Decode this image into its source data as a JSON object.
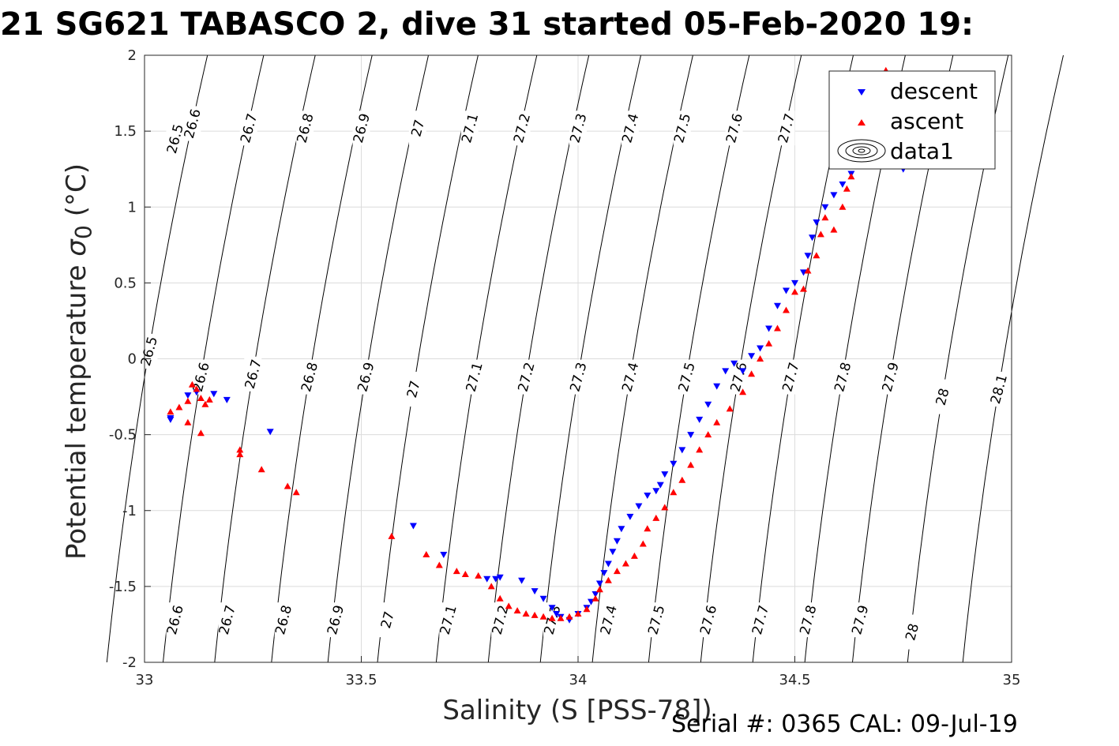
{
  "title": "21 SG621 TABASCO 2, dive 31 started 05-Feb-2020 19:",
  "footer": "Serial #: 0365  CAL: 09-Jul-19",
  "colors": {
    "descent": "#0000ff",
    "ascent": "#ff0000",
    "grid": "#dcdcdc",
    "contour": "#000000"
  },
  "chart_data": {
    "type": "scatter",
    "title": "21 SG621 TABASCO 2, dive 31 started 05-Feb-2020 19:",
    "xlabel": "Salinity (S [PSS-78])",
    "ylabel_text": "Potential temperature ",
    "ylabel_sigma": "σ",
    "ylabel_sub": "0",
    "ylabel_unit": " (°C)",
    "xlim": [
      33,
      35
    ],
    "ylim": [
      -2,
      2
    ],
    "xticks": [
      "33",
      "33.5",
      "34",
      "34.5",
      "35"
    ],
    "yticks": [
      "-2",
      "-1.5",
      "-1",
      "-0.5",
      "0",
      "0.5",
      "1",
      "1.5",
      "2"
    ],
    "grid": true,
    "legend": {
      "placement": "top-right",
      "entries": [
        "descent",
        "ascent",
        "data1"
      ]
    },
    "series": [
      {
        "name": "descent",
        "marker": "triangle-down",
        "points": [
          [
            33.06,
            -0.39
          ],
          [
            33.06,
            -0.4
          ],
          [
            33.1,
            -0.24
          ],
          [
            33.12,
            -0.22
          ],
          [
            33.16,
            -0.23
          ],
          [
            33.19,
            -0.27
          ],
          [
            33.29,
            -0.48
          ],
          [
            33.62,
            -1.1
          ],
          [
            33.69,
            -1.29
          ],
          [
            33.79,
            -1.45
          ],
          [
            33.81,
            -1.45
          ],
          [
            33.82,
            -1.44
          ],
          [
            33.87,
            -1.46
          ],
          [
            33.9,
            -1.53
          ],
          [
            33.92,
            -1.58
          ],
          [
            33.94,
            -1.64
          ],
          [
            33.95,
            -1.68
          ],
          [
            33.96,
            -1.7
          ],
          [
            33.98,
            -1.72
          ],
          [
            34.0,
            -1.68
          ],
          [
            34.02,
            -1.64
          ],
          [
            34.03,
            -1.6
          ],
          [
            34.04,
            -1.55
          ],
          [
            34.05,
            -1.48
          ],
          [
            34.06,
            -1.41
          ],
          [
            34.07,
            -1.35
          ],
          [
            34.08,
            -1.27
          ],
          [
            34.09,
            -1.2
          ],
          [
            34.1,
            -1.12
          ],
          [
            34.12,
            -1.04
          ],
          [
            34.14,
            -0.97
          ],
          [
            34.16,
            -0.9
          ],
          [
            34.18,
            -0.87
          ],
          [
            34.19,
            -0.83
          ],
          [
            34.2,
            -0.76
          ],
          [
            34.22,
            -0.69
          ],
          [
            34.24,
            -0.6
          ],
          [
            34.26,
            -0.5
          ],
          [
            34.28,
            -0.4
          ],
          [
            34.3,
            -0.3
          ],
          [
            34.32,
            -0.18
          ],
          [
            34.34,
            -0.08
          ],
          [
            34.36,
            -0.03
          ],
          [
            34.38,
            -0.08
          ],
          [
            34.4,
            0.02
          ],
          [
            34.42,
            0.07
          ],
          [
            34.44,
            0.2
          ],
          [
            34.46,
            0.35
          ],
          [
            34.48,
            0.45
          ],
          [
            34.5,
            0.5
          ],
          [
            34.52,
            0.57
          ],
          [
            34.53,
            0.68
          ],
          [
            34.54,
            0.8
          ],
          [
            34.55,
            0.9
          ],
          [
            34.57,
            1.0
          ],
          [
            34.59,
            1.08
          ],
          [
            34.61,
            1.15
          ],
          [
            34.63,
            1.22
          ],
          [
            34.65,
            1.28
          ],
          [
            34.67,
            1.35
          ],
          [
            34.69,
            1.41
          ],
          [
            34.71,
            1.45
          ],
          [
            34.73,
            1.3
          ],
          [
            34.75,
            1.25
          ]
        ]
      },
      {
        "name": "ascent",
        "marker": "triangle-up",
        "points": [
          [
            33.06,
            -0.35
          ],
          [
            33.08,
            -0.32
          ],
          [
            33.1,
            -0.28
          ],
          [
            33.11,
            -0.17
          ],
          [
            33.12,
            -0.2
          ],
          [
            33.13,
            -0.26
          ],
          [
            33.14,
            -0.3
          ],
          [
            33.15,
            -0.27
          ],
          [
            33.1,
            -0.42
          ],
          [
            33.13,
            -0.49
          ],
          [
            33.22,
            -0.6
          ],
          [
            33.22,
            -0.63
          ],
          [
            33.27,
            -0.73
          ],
          [
            33.33,
            -0.84
          ],
          [
            33.35,
            -0.88
          ],
          [
            33.57,
            -1.17
          ],
          [
            33.65,
            -1.29
          ],
          [
            33.68,
            -1.36
          ],
          [
            33.72,
            -1.4
          ],
          [
            33.74,
            -1.42
          ],
          [
            33.77,
            -1.43
          ],
          [
            33.8,
            -1.5
          ],
          [
            33.82,
            -1.58
          ],
          [
            33.84,
            -1.63
          ],
          [
            33.86,
            -1.66
          ],
          [
            33.88,
            -1.68
          ],
          [
            33.9,
            -1.69
          ],
          [
            33.92,
            -1.7
          ],
          [
            33.94,
            -1.71
          ],
          [
            33.96,
            -1.71
          ],
          [
            33.98,
            -1.7
          ],
          [
            34.0,
            -1.68
          ],
          [
            34.02,
            -1.65
          ],
          [
            34.04,
            -1.58
          ],
          [
            34.05,
            -1.52
          ],
          [
            34.07,
            -1.46
          ],
          [
            34.09,
            -1.4
          ],
          [
            34.11,
            -1.35
          ],
          [
            34.13,
            -1.3
          ],
          [
            34.15,
            -1.22
          ],
          [
            34.16,
            -1.12
          ],
          [
            34.18,
            -1.05
          ],
          [
            34.2,
            -0.98
          ],
          [
            34.22,
            -0.88
          ],
          [
            34.24,
            -0.8
          ],
          [
            34.26,
            -0.7
          ],
          [
            34.28,
            -0.6
          ],
          [
            34.3,
            -0.5
          ],
          [
            34.32,
            -0.42
          ],
          [
            34.35,
            -0.33
          ],
          [
            34.38,
            -0.22
          ],
          [
            34.4,
            -0.1
          ],
          [
            34.42,
            0.0
          ],
          [
            34.44,
            0.1
          ],
          [
            34.46,
            0.2
          ],
          [
            34.48,
            0.32
          ],
          [
            34.5,
            0.44
          ],
          [
            34.52,
            0.46
          ],
          [
            34.53,
            0.58
          ],
          [
            34.55,
            0.68
          ],
          [
            34.56,
            0.82
          ],
          [
            34.57,
            0.93
          ],
          [
            34.59,
            0.85
          ],
          [
            34.61,
            1.0
          ],
          [
            34.62,
            1.12
          ],
          [
            34.63,
            1.2
          ],
          [
            34.65,
            1.3
          ],
          [
            34.71,
            1.9
          ],
          [
            34.73,
            1.65
          ]
        ]
      }
    ],
    "sigma_contours": [
      {
        "level": "26.5",
        "labels": [
          [
            33.07,
            1.45
          ],
          [
            33.01,
            0.05
          ]
        ]
      },
      {
        "level": "26.6",
        "labels": [
          [
            33.11,
            1.55
          ],
          [
            33.13,
            -0.12
          ],
          [
            33.07,
            -1.72
          ]
        ]
      },
      {
        "level": "26.7",
        "labels": [
          [
            33.24,
            1.52
          ],
          [
            33.25,
            -0.1
          ],
          [
            33.19,
            -1.72
          ]
        ]
      },
      {
        "level": "26.8",
        "labels": [
          [
            33.37,
            1.52
          ],
          [
            33.38,
            -0.12
          ],
          [
            33.32,
            -1.72
          ]
        ]
      },
      {
        "level": "26.9",
        "labels": [
          [
            33.5,
            1.52
          ],
          [
            33.51,
            -0.12
          ],
          [
            33.44,
            -1.72
          ]
        ]
      },
      {
        "level": "27",
        "labels": [
          [
            33.63,
            1.52
          ],
          [
            33.62,
            -0.2
          ],
          [
            33.56,
            -1.72
          ]
        ]
      },
      {
        "level": "27.1",
        "labels": [
          [
            33.75,
            1.52
          ],
          [
            33.76,
            -0.12
          ],
          [
            33.7,
            -1.72
          ]
        ]
      },
      {
        "level": "27.2",
        "labels": [
          [
            33.87,
            1.52
          ],
          [
            33.88,
            -0.12
          ],
          [
            33.82,
            -1.72
          ]
        ]
      },
      {
        "level": "27.3",
        "labels": [
          [
            34.0,
            1.52
          ],
          [
            34.0,
            -0.12
          ],
          [
            33.94,
            -1.72
          ]
        ]
      },
      {
        "level": "27.4",
        "labels": [
          [
            34.12,
            1.52
          ],
          [
            34.12,
            -0.12
          ],
          [
            34.07,
            -1.72
          ]
        ]
      },
      {
        "level": "27.5",
        "labels": [
          [
            34.24,
            1.52
          ],
          [
            34.25,
            -0.12
          ],
          [
            34.18,
            -1.72
          ]
        ]
      },
      {
        "level": "27.6",
        "labels": [
          [
            34.36,
            1.52
          ],
          [
            34.37,
            -0.12
          ],
          [
            34.3,
            -1.72
          ]
        ]
      },
      {
        "level": "27.7",
        "labels": [
          [
            34.48,
            1.52
          ],
          [
            34.49,
            -0.12
          ],
          [
            34.42,
            -1.72
          ]
        ]
      },
      {
        "level": "27.8",
        "labels": [
          [
            34.61,
            -0.12
          ],
          [
            34.53,
            -1.72
          ]
        ]
      },
      {
        "level": "27.9",
        "labels": [
          [
            34.72,
            -0.12
          ],
          [
            34.65,
            -1.72
          ]
        ]
      },
      {
        "level": "28",
        "labels": [
          [
            34.91,
            1.42
          ],
          [
            34.84,
            -0.25
          ],
          [
            34.77,
            -1.8
          ]
        ]
      },
      {
        "level": "28.1",
        "labels": [
          [
            34.97,
            -0.2
          ]
        ]
      }
    ]
  }
}
